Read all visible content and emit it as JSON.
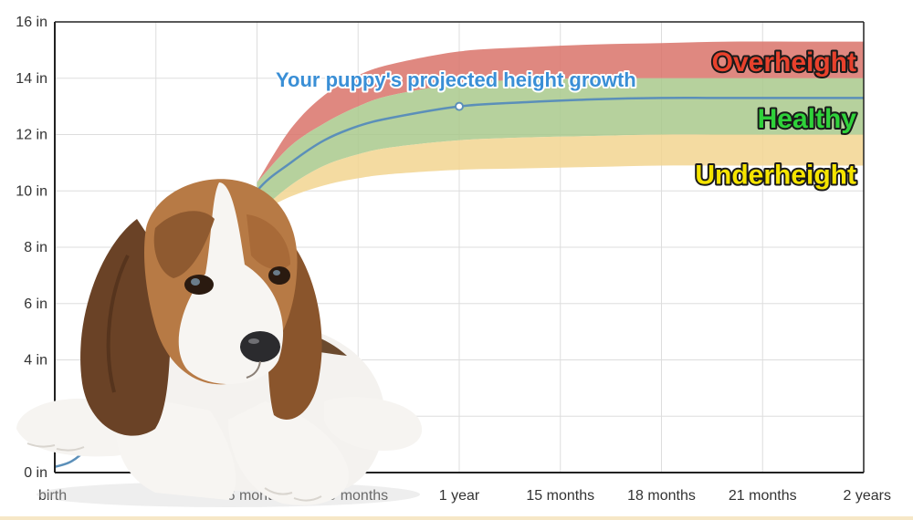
{
  "chart_data": {
    "type": "area",
    "title": "",
    "xlabel": "",
    "ylabel": "",
    "x_ticks": [
      {
        "months": 0,
        "label": "birth"
      },
      {
        "months": 3,
        "label": ""
      },
      {
        "months": 6,
        "label": "6 months"
      },
      {
        "months": 9,
        "label": "9 months"
      },
      {
        "months": 12,
        "label": "1 year"
      },
      {
        "months": 15,
        "label": "15 months"
      },
      {
        "months": 18,
        "label": "18 months"
      },
      {
        "months": 21,
        "label": "21 months"
      },
      {
        "months": 24,
        "label": "2 years"
      }
    ],
    "y_ticks": [
      {
        "value": 0,
        "label": "0 in"
      },
      {
        "value": 2,
        "label": ""
      },
      {
        "value": 4,
        "label": "4 in"
      },
      {
        "value": 6,
        "label": "6 in"
      },
      {
        "value": 8,
        "label": "8 in"
      },
      {
        "value": 10,
        "label": "10 in"
      },
      {
        "value": 12,
        "label": "12 in"
      },
      {
        "value": 14,
        "label": "14 in"
      },
      {
        "value": 16,
        "label": "16 in"
      }
    ],
    "xlim": [
      0,
      24
    ],
    "ylim": [
      0,
      16
    ],
    "grid": true,
    "bands": [
      {
        "name": "Overheight",
        "color": "#d9736a",
        "x": [
          6,
          7,
          8,
          9,
          10,
          12,
          14,
          16,
          18,
          20,
          22,
          24
        ],
        "lower": [
          10.3,
          11.6,
          12.4,
          13.0,
          13.4,
          13.8,
          13.95,
          14.0,
          14.0,
          14.0,
          14.0,
          14.0
        ],
        "upper": [
          10.3,
          12.2,
          13.4,
          14.1,
          14.5,
          14.95,
          15.1,
          15.2,
          15.25,
          15.3,
          15.3,
          15.3
        ]
      },
      {
        "name": "Healthy",
        "color": "#a9c98c",
        "x": [
          6,
          7,
          8,
          9,
          10,
          12,
          14,
          16,
          18,
          20,
          22,
          24
        ],
        "lower": [
          9.2,
          10.2,
          10.9,
          11.3,
          11.55,
          11.8,
          11.9,
          11.95,
          12.0,
          12.0,
          12.0,
          12.0
        ],
        "upper": [
          10.3,
          11.6,
          12.4,
          13.0,
          13.4,
          13.8,
          13.95,
          14.0,
          14.0,
          14.0,
          14.0,
          14.0
        ]
      },
      {
        "name": "Underheight",
        "color": "#f2d591",
        "x": [
          6,
          7,
          8,
          9,
          10,
          12,
          14,
          16,
          18,
          20,
          22,
          24
        ],
        "lower": [
          9.2,
          9.8,
          10.2,
          10.45,
          10.6,
          10.75,
          10.8,
          10.85,
          10.9,
          10.9,
          10.9,
          10.9
        ],
        "upper": [
          9.2,
          10.2,
          10.9,
          11.3,
          11.55,
          11.8,
          11.9,
          11.95,
          12.0,
          12.0,
          12.0,
          12.0
        ]
      }
    ],
    "series": [
      {
        "name": "Your puppy's projected height growth",
        "color": "#5b8fb9",
        "x": [
          0,
          0.5,
          1,
          1.5,
          2,
          3,
          4,
          5,
          6,
          7,
          8,
          9,
          10,
          12,
          14,
          16,
          18,
          20,
          22,
          24
        ],
        "y": [
          0.2,
          0.4,
          0.9,
          1.6,
          2.6,
          4.5,
          6.3,
          8.1,
          10.0,
          11.0,
          11.8,
          12.3,
          12.6,
          13.0,
          13.15,
          13.25,
          13.3,
          13.3,
          13.3,
          13.3
        ],
        "marker": {
          "x": 12,
          "y": 13.0
        }
      }
    ],
    "zone_labels": [
      {
        "text": "Overheight",
        "color": "#e8412c",
        "anchor_months": 24,
        "anchor_value": 14.6
      },
      {
        "text": "Healthy",
        "color": "#2fd23a",
        "anchor_months": 24,
        "anchor_value": 12.6
      },
      {
        "text": "Underheight",
        "color": "#f5e400",
        "anchor_months": 24,
        "anchor_value": 10.6
      }
    ],
    "projection_label": {
      "text": "Your puppy's projected height growth",
      "color": "#3a8fd6"
    }
  },
  "photo": {
    "subject": "beagle-puppy"
  }
}
